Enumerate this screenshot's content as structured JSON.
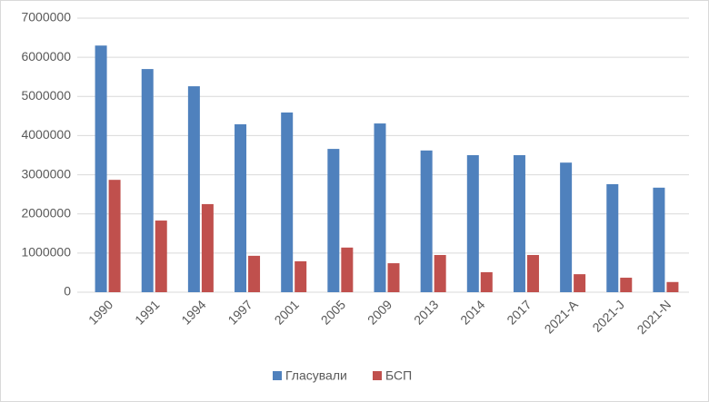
{
  "chart_data": {
    "type": "bar",
    "categories": [
      "1990",
      "1991",
      "1994",
      "1997",
      "2001",
      "2005",
      "2009",
      "2013",
      "2014",
      "2017",
      "2021-A",
      "2021-J",
      "2021-N"
    ],
    "series": [
      {
        "name": "Гласували",
        "color": "#4f81bd",
        "values": [
          6300000,
          5700000,
          5260000,
          4290000,
          4590000,
          3660000,
          4310000,
          3620000,
          3500000,
          3500000,
          3310000,
          2760000,
          2670000
        ]
      },
      {
        "name": "БСП",
        "color": "#c0504d",
        "values": [
          2870000,
          1830000,
          2250000,
          930000,
          790000,
          1140000,
          740000,
          950000,
          510000,
          950000,
          460000,
          370000,
          260000
        ]
      }
    ],
    "ylim": [
      0,
      7000000
    ],
    "yticks": [
      0,
      1000000,
      2000000,
      3000000,
      4000000,
      5000000,
      6000000,
      7000000
    ],
    "grid": true,
    "legend": "bottom"
  }
}
